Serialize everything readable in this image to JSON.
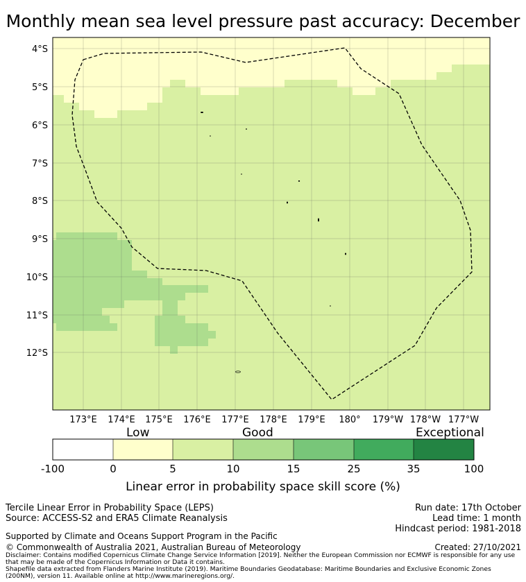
{
  "title": "Monthly mean sea level pressure past accuracy: December",
  "map": {
    "lat_labels": [
      "4°S",
      "5°S",
      "6°S",
      "7°S",
      "8°S",
      "9°S",
      "10°S",
      "11°S",
      "12°S"
    ],
    "lon_labels": [
      "173°E",
      "174°E",
      "175°E",
      "176°E",
      "177°E",
      "178°E",
      "179°E",
      "180°",
      "179°W",
      "178°W",
      "177°W"
    ],
    "region": "Tuvalu EEZ (dashed boundary)"
  },
  "colorbar": {
    "category_labels": [
      "Low",
      "Good",
      "Exceptional"
    ],
    "ticks": [
      "-100",
      "0",
      "5",
      "10",
      "15",
      "25",
      "35",
      "100"
    ],
    "colors": [
      "#ffffff",
      "#ffffcc",
      "#d9f0a3",
      "#addd8e",
      "#78c679",
      "#41ab5d",
      "#238443"
    ],
    "title": "Linear error in probability space skill score (%)"
  },
  "footer": {
    "left_line1": "Tercile Linear Error in Probability Space (LEPS)",
    "left_line2": "Source: ACCESS-S2 and ERA5 Climate Reanalysis",
    "support": "Supported by Climate and Oceans Support Program in the Pacific",
    "copyright": "© Commonwealth of Australia 2021, Australian Bureau of Meteorology",
    "run_date": "Run date: 17th October",
    "lead_time": "Lead time: 1 month",
    "hindcast": "Hindcast period: 1981-2018",
    "created": "Created: 27/10/2021",
    "disclaimer": "Disclaimer: Contains modified Copernicus Climate Change Service Information [2019]. Neither the European Commission nor ECMWF is responsible for any use that may be made of the Copernicus Information or Data it contains.",
    "shapefile": "Shapefile data extracted from Flanders Marine Institute (2019). Maritime Boundaries Geodatabase: Maritime Boundaries and Exclusive Economic Zones (200NM), version 11. Available online at http://www.marineregions.org/."
  }
}
